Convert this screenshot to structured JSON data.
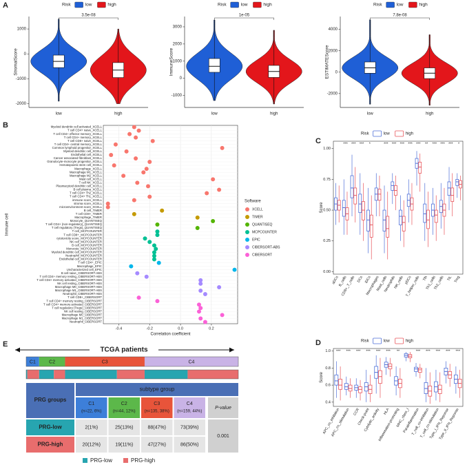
{
  "panel_labels": [
    "A",
    "B",
    "C",
    "D",
    "E"
  ],
  "chart_data": [
    {
      "type": "violin",
      "legend_title": "Risk",
      "ylabel": "StromalScore",
      "pvalue": "3.5e-08",
      "ylim": [
        -2150,
        1500
      ],
      "yticks": [
        -2000,
        -1000,
        0,
        1000
      ],
      "series": [
        {
          "name": "low",
          "color": "#1f5fd6",
          "stats": [
            -1900,
            -550,
            -300,
            -50,
            1400
          ]
        },
        {
          "name": "high",
          "color": "#e3161b",
          "stats": [
            -2000,
            -950,
            -650,
            -350,
            1000
          ]
        }
      ]
    },
    {
      "type": "violin",
      "legend_title": "Risk",
      "ylabel": "ImmuneScore",
      "pvalue": "1e-05",
      "ylim": [
        -1700,
        3600
      ],
      "yticks": [
        -1000,
        0,
        1000,
        2000,
        3000
      ],
      "series": [
        {
          "name": "low",
          "color": "#1f5fd6",
          "stats": [
            -1300,
            350,
            700,
            1150,
            3400
          ]
        },
        {
          "name": "high",
          "color": "#e3161b",
          "stats": [
            -1500,
            50,
            400,
            750,
            2800
          ]
        }
      ]
    },
    {
      "type": "violin",
      "legend_title": "Risk",
      "ylabel": "ESTIMATEScore",
      "pvalue": "7.8e-08",
      "ylim": [
        -3300,
        5200
      ],
      "yticks": [
        -2000,
        0,
        2000,
        4000
      ],
      "series": [
        {
          "name": "low",
          "color": "#1f5fd6",
          "stats": [
            -3000,
            -100,
            400,
            950,
            4900
          ]
        },
        {
          "name": "high",
          "color": "#e3161b",
          "stats": [
            -3100,
            -600,
            -100,
            400,
            3500
          ]
        }
      ]
    },
    {
      "type": "dot",
      "ylabel": "Immune cell",
      "xlabel": "Correlation coefficient",
      "legend_title": "Software",
      "xlim": [
        -0.5,
        0.37
      ],
      "xticks": [
        -0.4,
        -0.2,
        {
          "value": 0,
          "label": "0.0"
        },
        0.2
      ],
      "series": [
        {
          "name": "XCELL",
          "color": "#f8766d",
          "categories": [
            "Myeloid dendritic cell activated_XCELL",
            "T cell CD4+ naive_XCELL",
            "T cell CD4+ effector memory_XCELL",
            "T cell CD4+ memory_XCELL",
            "T cell CD8+ naive_XCELL",
            "T cell CD4+ central memory_XCELL",
            "Common lymphoid progenitor_XCELL",
            "Myeloid dendritic cell_XCELL",
            "Endothelial cell_XCELL",
            "Cancer associated fibroblast_XCELL",
            "Granulocyte-monocyte progenitor_XCELL",
            "Hematopoietic stem cell_XCELL",
            "Macrophage_XCELL",
            "Macrophage M1_XCELL",
            "Macrophage M2_XCELL",
            "Mast cell_XCELL",
            "T cell NK_XCELL",
            "Plasmacytoid dendritic cell_XCELL",
            "B cell plasma_XCELL",
            "T cell CD4+ Th2_XCELL",
            "T cell CD4+ Th1_XCELL",
            "immune score_XCELL",
            "stroma score_XCELL",
            "microenvironment score_XCELL"
          ],
          "values": [
            -0.3,
            -0.27,
            -0.33,
            -0.29,
            -0.18,
            -0.42,
            0.27,
            -0.35,
            -0.45,
            -0.29,
            -0.2,
            -0.43,
            -0.22,
            -0.24,
            -0.37,
            0.21,
            -0.28,
            -0.21,
            0.25,
            0.17,
            -0.2,
            -0.3,
            -0.47,
            -0.47
          ]
        },
        {
          "name": "TIMER",
          "color": "#c49a00",
          "categories": [
            "B cell_TIMER",
            "T cell CD8+_TIMER",
            "Macrophage_TIMER"
          ],
          "values": [
            -0.12,
            -0.3,
            0.11
          ]
        },
        {
          "name": "QUANTISEQ",
          "color": "#53b400",
          "categories": [
            "Monocyte_QUANTISEQ",
            "T cell CD4+ (non-regulatory)_QUANTISEQ",
            "T cell regulatory (Tregs)_QUANTISEQ"
          ],
          "values": [
            0.21,
            -0.15,
            0.11
          ]
        },
        {
          "name": "MCPCOUNTER",
          "color": "#00c094",
          "categories": [
            "T cell_MCPCOUNTER",
            "T cell CD8+_MCPCOUNTER",
            "cytotoxicity score_MCPCOUNTER",
            "NK cell_MCPCOUNTER",
            "B cell_MCPCOUNTER",
            "Monocyte_MCPCOUNTER",
            "Myeloid dendritic cell_MCPCOUNTER",
            "Neutrophil_MCPCOUNTER",
            "Endothelial cell_MCPCOUNTER"
          ],
          "values": [
            -0.15,
            -0.15,
            -0.23,
            -0.2,
            -0.17,
            -0.16,
            -0.17,
            -0.17,
            -0.17
          ]
        },
        {
          "name": "EPIC",
          "color": "#00b6eb",
          "categories": [
            "T cell CD4+_EPIC",
            "Macrophage_EPIC",
            "Uncharacterized cell_EPIC"
          ],
          "values": [
            -0.14,
            -0.32,
            0.35
          ]
        },
        {
          "name": "CIBERSORT-ABS",
          "color": "#a58aff",
          "categories": [
            "B cell naive_CIBERSORT-ABS",
            "T cell CD4+ memory resting_CIBERSORT-ABS",
            "T cell CD4+ memory activated_CIBERSORT-ABS",
            "NK cell resting_CIBERSORT-ABS",
            "Macrophage M0_CIBERSORT-ABS",
            "Macrophage M1_CIBERSORT-ABS",
            "Neutrophil_CIBERSORT-ABS"
          ],
          "values": [
            -0.28,
            -0.22,
            0.13,
            0.13,
            0.25,
            0.13,
            0.16
          ]
        },
        {
          "name": "CIBERSORT",
          "color": "#fb61d7",
          "categories": [
            "T cell CD8+_CIBERSORT",
            "T cell CD4+ memory resting_CIBERSORT",
            "T cell CD4+ memory activated_CIBERSORT",
            "T cell regulatory (Tregs)_CIBERSORT",
            "NK cell resting_CIBERSORT",
            "Macrophage M0_CIBERSORT",
            "Macrophage M1_CIBERSORT",
            "Neutrophil_CIBERSORT"
          ],
          "values": [
            -0.27,
            -0.15,
            0.12,
            0.13,
            0.12,
            0.27,
            0.13,
            0.16
          ]
        }
      ]
    },
    {
      "type": "box",
      "legend_title": "Risk",
      "ylabel": "Score",
      "ylim": [
        -0.02,
        1.06
      ],
      "yticks": [
        {
          "value": 0,
          "label": "0.00"
        },
        {
          "value": 0.25,
          "label": "0.25"
        },
        {
          "value": 0.5,
          "label": "0.50"
        },
        {
          "value": 0.75,
          "label": "0.75"
        },
        {
          "value": 1,
          "label": "1.00"
        }
      ],
      "categories": [
        "aDCs",
        "B_cells",
        "CD8+_T_cells",
        "DCs",
        "iDCs",
        "Macrophages",
        "Mast_cells",
        "Neutrophils",
        "NK_cells",
        "pDCs",
        "T_helper_cells",
        "Tfh",
        "Th1_cells",
        "Th2_cells",
        "TIL",
        "Treg"
      ],
      "significance": [
        null,
        "***",
        "***",
        "***",
        "*",
        null,
        "***",
        "***",
        "***",
        "***",
        "***",
        "**",
        "***",
        "***",
        "***",
        "*"
      ],
      "series": [
        {
          "name": "low",
          "color": "#4e6fd8",
          "values": [
            [
              0.38,
              0.5,
              0.55,
              0.6,
              0.72
            ],
            [
              0.3,
              0.45,
              0.52,
              0.58,
              0.75
            ],
            [
              0.45,
              0.6,
              0.68,
              0.78,
              0.95
            ],
            [
              0.3,
              0.48,
              0.55,
              0.63,
              0.8
            ],
            [
              0.15,
              0.33,
              0.42,
              0.5,
              0.68
            ],
            [
              0.45,
              0.58,
              0.63,
              0.68,
              0.8
            ],
            [
              0.15,
              0.33,
              0.42,
              0.5,
              0.7
            ],
            [
              0.55,
              0.66,
              0.7,
              0.73,
              0.8
            ],
            [
              0.25,
              0.38,
              0.45,
              0.5,
              0.62
            ],
            [
              0.4,
              0.53,
              0.58,
              0.63,
              0.75
            ],
            [
              0.7,
              0.84,
              0.88,
              0.92,
              0.98
            ],
            [
              0.25,
              0.4,
              0.47,
              0.55,
              0.72
            ],
            [
              0.3,
              0.45,
              0.5,
              0.55,
              0.68
            ],
            [
              0.35,
              0.48,
              0.53,
              0.58,
              0.72
            ],
            [
              0.5,
              0.62,
              0.68,
              0.73,
              0.85
            ],
            [
              0.6,
              0.7,
              0.73,
              0.75,
              0.8
            ]
          ]
        },
        {
          "name": "high",
          "color": "#e8545a",
          "values": [
            [
              0.4,
              0.5,
              0.54,
              0.58,
              0.7
            ],
            [
              0.3,
              0.42,
              0.47,
              0.52,
              0.65
            ],
            [
              0.4,
              0.55,
              0.62,
              0.68,
              0.85
            ],
            [
              0.25,
              0.42,
              0.5,
              0.57,
              0.72
            ],
            [
              0.1,
              0.28,
              0.38,
              0.46,
              0.62
            ],
            [
              0.45,
              0.58,
              0.63,
              0.67,
              0.78
            ],
            [
              0.1,
              0.28,
              0.35,
              0.45,
              0.65
            ],
            [
              0.5,
              0.62,
              0.66,
              0.7,
              0.78
            ],
            [
              0.2,
              0.33,
              0.4,
              0.45,
              0.58
            ],
            [
              0.38,
              0.5,
              0.55,
              0.6,
              0.72
            ],
            [
              0.65,
              0.8,
              0.85,
              0.89,
              0.96
            ],
            [
              0.2,
              0.35,
              0.42,
              0.5,
              0.65
            ],
            [
              0.25,
              0.4,
              0.46,
              0.5,
              0.62
            ],
            [
              0.3,
              0.45,
              0.5,
              0.55,
              0.68
            ],
            [
              0.45,
              0.57,
              0.62,
              0.68,
              0.8
            ],
            [
              0.58,
              0.68,
              0.71,
              0.74,
              0.78
            ]
          ]
        }
      ]
    },
    {
      "type": "box",
      "legend_title": "Risk",
      "ylabel": "Score",
      "ylim": [
        0.35,
        1.03
      ],
      "yticks": [
        0.4,
        0.6,
        0.8,
        {
          "value": 1,
          "label": "1.0"
        }
      ],
      "categories": [
        "APC_co_inhibition",
        "APC_co_stimulation",
        "CCR",
        "Check-point",
        "Cytolytic_activity",
        "HLA",
        "Inflammation-promoting",
        "MHC_class_I",
        "Parainflammation",
        "T_cell_co-inhibition",
        "T_cell_co-stimulation",
        "Type_I_IFN_Reponse",
        "Type_II_IFN_Reponse"
      ],
      "significance": [
        "***",
        "***",
        "***",
        "***",
        "***",
        "***",
        "**",
        null,
        "***",
        "***",
        "***",
        "***",
        "***"
      ],
      "series": [
        {
          "name": "low",
          "color": "#4e6fd8",
          "values": [
            [
              0.45,
              0.6,
              0.65,
              0.72,
              0.88
            ],
            [
              0.48,
              0.55,
              0.58,
              0.62,
              0.7
            ],
            [
              0.45,
              0.54,
              0.57,
              0.6,
              0.68
            ],
            [
              0.4,
              0.53,
              0.58,
              0.63,
              0.78
            ],
            [
              0.5,
              0.68,
              0.75,
              0.82,
              0.95
            ],
            [
              0.72,
              0.81,
              0.84,
              0.87,
              0.93
            ],
            [
              0.48,
              0.6,
              0.65,
              0.7,
              0.82
            ],
            [
              0.88,
              0.93,
              0.95,
              0.97,
              0.99
            ],
            [
              0.7,
              0.76,
              0.79,
              0.81,
              0.86
            ],
            [
              0.4,
              0.5,
              0.56,
              0.63,
              0.8
            ],
            [
              0.42,
              0.52,
              0.58,
              0.64,
              0.78
            ],
            [
              0.62,
              0.72,
              0.76,
              0.8,
              0.88
            ],
            [
              0.5,
              0.62,
              0.67,
              0.72,
              0.82
            ]
          ]
        },
        {
          "name": "high",
          "color": "#e8545a",
          "values": [
            [
              0.42,
              0.55,
              0.6,
              0.67,
              0.82
            ],
            [
              0.45,
              0.53,
              0.56,
              0.6,
              0.68
            ],
            [
              0.42,
              0.51,
              0.55,
              0.58,
              0.66
            ],
            [
              0.4,
              0.5,
              0.55,
              0.6,
              0.72
            ],
            [
              0.45,
              0.62,
              0.7,
              0.77,
              0.92
            ],
            [
              0.7,
              0.79,
              0.82,
              0.85,
              0.92
            ],
            [
              0.45,
              0.57,
              0.62,
              0.67,
              0.8
            ],
            [
              0.87,
              0.92,
              0.94,
              0.96,
              0.99
            ],
            [
              0.68,
              0.75,
              0.78,
              0.8,
              0.85
            ],
            [
              0.38,
              0.47,
              0.53,
              0.59,
              0.75
            ],
            [
              0.4,
              0.5,
              0.55,
              0.6,
              0.75
            ],
            [
              0.58,
              0.68,
              0.72,
              0.76,
              0.85
            ],
            [
              0.45,
              0.57,
              0.62,
              0.67,
              0.78
            ]
          ]
        }
      ]
    }
  ],
  "table": {
    "title": "TCGA patients",
    "group_header": "PRG groups",
    "subtype_header": "subtype group",
    "pvalue_header": "P-value",
    "pvalue": "0.001",
    "subtypes": [
      {
        "name": "C1",
        "n": 22,
        "label": "(n=22, 6%)",
        "color": "#3d7fd9"
      },
      {
        "name": "C2",
        "n": 44,
        "label": "(n=44, 12%)",
        "color": "#5cb84a"
      },
      {
        "name": "C3",
        "n": 135,
        "label": "(n=135, 38%)",
        "color": "#e8543a"
      },
      {
        "name": "C4",
        "n": 159,
        "label": "(n=159, 44%)",
        "color": "#c9b3e6"
      }
    ],
    "rows": [
      {
        "name": "PRG-low",
        "color": "#27a5b0",
        "counts": [
          2,
          25,
          88,
          73
        ],
        "cells": [
          "2(1%)",
          "25(13%)",
          "88(47%)",
          "73(39%)"
        ]
      },
      {
        "name": "PRG-high",
        "color": "#e86d6d",
        "counts": [
          20,
          19,
          47,
          86
        ],
        "cells": [
          "20(12%)",
          "19(11%)",
          "47(27%)",
          "86(50%)"
        ]
      }
    ]
  }
}
